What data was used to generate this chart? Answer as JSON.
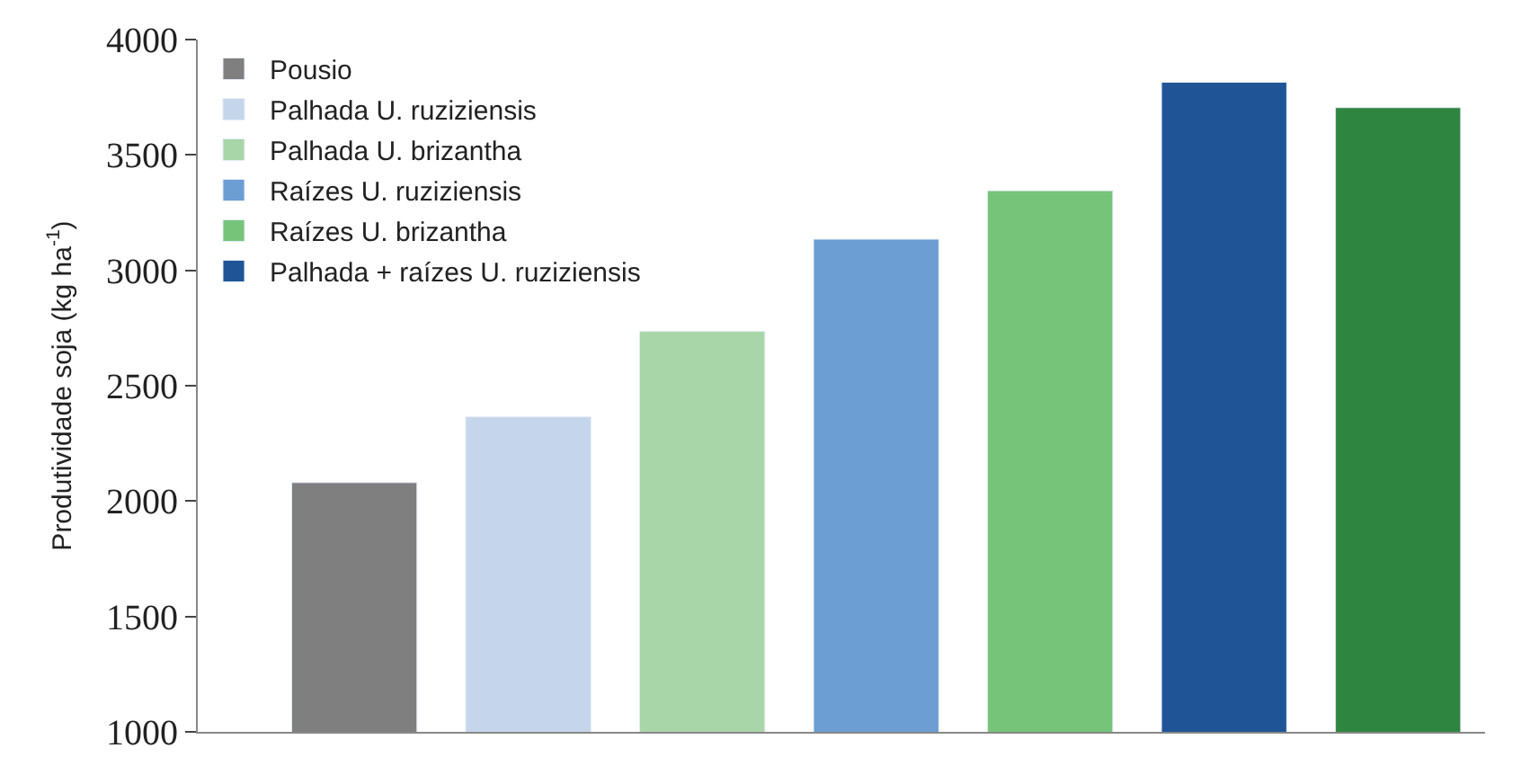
{
  "chart_data": {
    "type": "bar",
    "ylabel": "Produtividade soja (kg ha$^{-1}$)",
    "categories": [
      null,
      null,
      null,
      null,
      null,
      null,
      null
    ],
    "series": [
      {
        "name": "Pousio",
        "color": "#7f7f7f",
        "values": [
          2080,
          null,
          null,
          null,
          null,
          null,
          null
        ]
      },
      {
        "name": "Palhada U. ruziziensis",
        "color": "#c5d6ec",
        "values": [
          null,
          2365,
          null,
          null,
          null,
          null,
          null
        ]
      },
      {
        "name": "Palhada U. brizantha",
        "color": "#a9d6a8",
        "values": [
          null,
          null,
          2735,
          null,
          null,
          null,
          null
        ]
      },
      {
        "name": "Raízes U. ruziziensis",
        "color": "#6c9dd3",
        "values": [
          null,
          null,
          null,
          3135,
          null,
          null,
          null
        ]
      },
      {
        "name": "Raízes U. brizantha",
        "color": "#76c47a",
        "values": [
          null,
          null,
          null,
          null,
          3345,
          null,
          null
        ]
      },
      {
        "name": "Palhada + raízes U. ruziziensis",
        "color": "#1f5597",
        "values": [
          null,
          null,
          null,
          null,
          null,
          3815,
          null
        ]
      },
      {
        "color": "#2e8540",
        "values": [
          null,
          null,
          null,
          null,
          null,
          null,
          3705
        ]
      }
    ],
    "ylim": [
      1000,
      4000
    ],
    "yticks": [
      1000,
      1500,
      2000,
      2500,
      3000,
      3500,
      4000
    ],
    "legend": "top left",
    "tick_labels": "y"
  }
}
